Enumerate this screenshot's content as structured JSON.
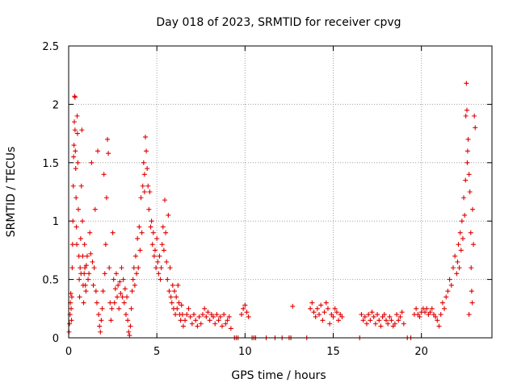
{
  "chart_data": {
    "type": "scatter",
    "title": "Day 018 of 2023, SRMTID for receiver cpvg",
    "xlabel": "GPS time / hours",
    "ylabel": "SRMTID / TECUs",
    "xlim": [
      0,
      24
    ],
    "ylim": [
      0,
      2.5
    ],
    "x_ticks": [
      0,
      5,
      10,
      15,
      20
    ],
    "y_ticks": [
      0,
      0.5,
      1,
      1.5,
      2,
      2.5
    ],
    "x_tick_labels": [
      "0",
      "5",
      "10",
      "15",
      "20"
    ],
    "y_tick_labels": [
      "0",
      "0.5",
      "1",
      "1.5",
      "2",
      "2.5"
    ],
    "grid": true,
    "marker": "+",
    "color": "#e00000",
    "series": [
      {
        "name": "cpvg",
        "points": [
          [
            0.02,
            0.05
          ],
          [
            0.05,
            0.12
          ],
          [
            0.08,
            0.2
          ],
          [
            0.1,
            0.3
          ],
          [
            0.12,
            0.38
          ],
          [
            0.14,
            0.25
          ],
          [
            0.16,
            0.15
          ],
          [
            0.18,
            0.35
          ],
          [
            0.2,
            0.6
          ],
          [
            0.22,
            0.8
          ],
          [
            0.24,
            1.0
          ],
          [
            0.26,
            1.3
          ],
          [
            0.28,
            1.55
          ],
          [
            0.3,
            1.65
          ],
          [
            0.32,
            1.85
          ],
          [
            0.34,
            2.07
          ],
          [
            0.36,
            1.78
          ],
          [
            0.38,
            1.6
          ],
          [
            0.4,
            1.45
          ],
          [
            0.42,
            1.2
          ],
          [
            0.44,
            0.95
          ],
          [
            0.46,
            0.8
          ],
          [
            0.48,
            1.9
          ],
          [
            0.5,
            1.75
          ],
          [
            0.52,
            1.5
          ],
          [
            0.55,
            1.1
          ],
          [
            0.58,
            0.7
          ],
          [
            0.6,
            0.5
          ],
          [
            0.62,
            0.35
          ],
          [
            0.65,
            0.6
          ],
          [
            0.68,
            0.85
          ],
          [
            0.7,
            0.55
          ],
          [
            0.72,
            1.3
          ],
          [
            0.75,
            1.78
          ],
          [
            0.78,
            1.0
          ],
          [
            0.8,
            0.7
          ],
          [
            0.82,
            0.45
          ],
          [
            0.85,
            0.3
          ],
          [
            0.88,
            0.55
          ],
          [
            0.9,
            0.8
          ],
          [
            0.92,
            0.6
          ],
          [
            0.95,
            0.45
          ],
          [
            0.98,
            0.4
          ],
          [
            1.0,
            0.62
          ],
          [
            1.05,
            0.7
          ],
          [
            1.1,
            0.5
          ],
          [
            1.15,
            0.55
          ],
          [
            1.2,
            0.9
          ],
          [
            1.25,
            0.72
          ],
          [
            1.3,
            1.5
          ],
          [
            1.35,
            0.65
          ],
          [
            1.4,
            0.45
          ],
          [
            1.45,
            0.6
          ],
          [
            1.5,
            1.1
          ],
          [
            1.55,
            0.4
          ],
          [
            1.6,
            0.3
          ],
          [
            1.65,
            1.6
          ],
          [
            1.7,
            0.2
          ],
          [
            1.75,
            0.1
          ],
          [
            1.8,
            0.05
          ],
          [
            1.85,
            0.15
          ],
          [
            1.9,
            0.25
          ],
          [
            1.95,
            0.4
          ],
          [
            2.0,
            1.4
          ],
          [
            2.05,
            0.55
          ],
          [
            2.1,
            0.8
          ],
          [
            2.15,
            1.2
          ],
          [
            2.2,
            1.7
          ],
          [
            2.25,
            1.58
          ],
          [
            2.3,
            0.6
          ],
          [
            2.35,
            0.3
          ],
          [
            2.4,
            0.15
          ],
          [
            2.45,
            0.25
          ],
          [
            2.5,
            0.9
          ],
          [
            2.55,
            0.5
          ],
          [
            2.6,
            0.3
          ],
          [
            2.65,
            0.42
          ],
          [
            2.7,
            0.55
          ],
          [
            2.75,
            0.35
          ],
          [
            2.8,
            0.45
          ],
          [
            2.85,
            0.25
          ],
          [
            2.9,
            0.48
          ],
          [
            2.95,
            0.38
          ],
          [
            3.0,
            0.6
          ],
          [
            3.05,
            0.35
          ],
          [
            3.1,
            0.5
          ],
          [
            3.15,
            0.3
          ],
          [
            3.2,
            0.42
          ],
          [
            3.25,
            0.2
          ],
          [
            3.3,
            0.35
          ],
          [
            3.35,
            0.15
          ],
          [
            3.4,
            0.05
          ],
          [
            3.45,
            0.02
          ],
          [
            3.5,
            0.1
          ],
          [
            3.55,
            0.25
          ],
          [
            3.6,
            0.4
          ],
          [
            3.65,
            0.5
          ],
          [
            3.7,
            0.6
          ],
          [
            3.75,
            0.45
          ],
          [
            3.8,
            0.7
          ],
          [
            3.85,
            0.55
          ],
          [
            3.9,
            0.85
          ],
          [
            3.95,
            0.6
          ],
          [
            4.0,
            0.95
          ],
          [
            4.05,
            0.75
          ],
          [
            4.1,
            1.2
          ],
          [
            4.15,
            0.9
          ],
          [
            4.2,
            1.3
          ],
          [
            4.25,
            1.5
          ],
          [
            4.3,
            1.4
          ],
          [
            4.35,
            1.72
          ],
          [
            4.4,
            1.6
          ],
          [
            4.45,
            1.45
          ],
          [
            4.5,
            1.3
          ],
          [
            4.55,
            1.1
          ],
          [
            4.6,
            1.25
          ],
          [
            4.65,
            0.95
          ],
          [
            4.7,
            1.0
          ],
          [
            4.75,
            0.8
          ],
          [
            4.8,
            0.9
          ],
          [
            4.85,
            0.7
          ],
          [
            4.9,
            0.75
          ],
          [
            4.95,
            0.6
          ],
          [
            5.0,
            0.85
          ],
          [
            5.05,
            0.65
          ],
          [
            5.1,
            0.55
          ],
          [
            5.15,
            0.7
          ],
          [
            5.2,
            0.5
          ],
          [
            5.25,
            0.6
          ],
          [
            5.3,
            0.8
          ],
          [
            5.35,
            0.95
          ],
          [
            5.4,
            0.75
          ],
          [
            5.45,
            1.18
          ],
          [
            5.5,
            0.9
          ],
          [
            5.55,
            0.65
          ],
          [
            5.6,
            0.5
          ],
          [
            5.65,
            1.05
          ],
          [
            5.7,
            0.4
          ],
          [
            5.75,
            0.6
          ],
          [
            5.8,
            0.35
          ],
          [
            5.85,
            0.3
          ],
          [
            5.9,
            0.45
          ],
          [
            5.95,
            0.25
          ],
          [
            6.0,
            0.4
          ],
          [
            6.05,
            0.2
          ],
          [
            6.1,
            0.35
          ],
          [
            6.15,
            0.25
          ],
          [
            6.2,
            0.45
          ],
          [
            6.25,
            0.3
          ],
          [
            6.3,
            0.2
          ],
          [
            6.35,
            0.15
          ],
          [
            6.4,
            0.28
          ],
          [
            6.45,
            0.2
          ],
          [
            6.5,
            0.1
          ],
          [
            6.6,
            0.15
          ],
          [
            6.7,
            0.2
          ],
          [
            6.8,
            0.25
          ],
          [
            6.9,
            0.18
          ],
          [
            7.0,
            0.12
          ],
          [
            7.1,
            0.2
          ],
          [
            7.2,
            0.15
          ],
          [
            7.3,
            0.1
          ],
          [
            7.4,
            0.18
          ],
          [
            7.5,
            0.12
          ],
          [
            7.6,
            0.2
          ],
          [
            7.7,
            0.25
          ],
          [
            7.8,
            0.18
          ],
          [
            7.9,
            0.22
          ],
          [
            8.0,
            0.15
          ],
          [
            8.1,
            0.2
          ],
          [
            8.2,
            0.18
          ],
          [
            8.3,
            0.12
          ],
          [
            8.4,
            0.2
          ],
          [
            8.5,
            0.15
          ],
          [
            8.6,
            0.18
          ],
          [
            8.7,
            0.1
          ],
          [
            8.8,
            0.2
          ],
          [
            8.9,
            0.12
          ],
          [
            9.0,
            0.15
          ],
          [
            9.1,
            0.18
          ],
          [
            9.2,
            0.08
          ],
          [
            9.4,
            0.0
          ],
          [
            9.5,
            0.0
          ],
          [
            9.6,
            0.0
          ],
          [
            9.8,
            0.2
          ],
          [
            9.9,
            0.25
          ],
          [
            10.0,
            0.28
          ],
          [
            10.1,
            0.22
          ],
          [
            10.2,
            0.18
          ],
          [
            10.4,
            0.0
          ],
          [
            10.5,
            0.0
          ],
          [
            10.6,
            0.0
          ],
          [
            11.2,
            0.0
          ],
          [
            11.7,
            0.0
          ],
          [
            12.1,
            0.0
          ],
          [
            12.5,
            0.0
          ],
          [
            12.6,
            0.0
          ],
          [
            12.7,
            0.27
          ],
          [
            13.5,
            0.0
          ],
          [
            13.7,
            0.25
          ],
          [
            13.8,
            0.3
          ],
          [
            13.9,
            0.22
          ],
          [
            14.0,
            0.18
          ],
          [
            14.1,
            0.25
          ],
          [
            14.2,
            0.2
          ],
          [
            14.3,
            0.28
          ],
          [
            14.4,
            0.15
          ],
          [
            14.5,
            0.22
          ],
          [
            14.6,
            0.3
          ],
          [
            14.7,
            0.25
          ],
          [
            14.8,
            0.12
          ],
          [
            14.9,
            0.2
          ],
          [
            15.0,
            0.18
          ],
          [
            15.1,
            0.25
          ],
          [
            15.2,
            0.22
          ],
          [
            15.3,
            0.15
          ],
          [
            15.4,
            0.2
          ],
          [
            15.5,
            0.18
          ],
          [
            16.5,
            0.0
          ],
          [
            16.6,
            0.2
          ],
          [
            16.7,
            0.15
          ],
          [
            16.8,
            0.18
          ],
          [
            16.9,
            0.12
          ],
          [
            17.0,
            0.2
          ],
          [
            17.1,
            0.15
          ],
          [
            17.2,
            0.22
          ],
          [
            17.3,
            0.18
          ],
          [
            17.4,
            0.12
          ],
          [
            17.5,
            0.2
          ],
          [
            17.6,
            0.15
          ],
          [
            17.7,
            0.1
          ],
          [
            17.8,
            0.18
          ],
          [
            17.9,
            0.2
          ],
          [
            18.0,
            0.15
          ],
          [
            18.1,
            0.12
          ],
          [
            18.2,
            0.18
          ],
          [
            18.3,
            0.15
          ],
          [
            18.4,
            0.1
          ],
          [
            18.5,
            0.12
          ],
          [
            18.6,
            0.2
          ],
          [
            18.7,
            0.15
          ],
          [
            18.8,
            0.18
          ],
          [
            18.9,
            0.22
          ],
          [
            19.0,
            0.12
          ],
          [
            19.2,
            0.0
          ],
          [
            19.4,
            0.0
          ],
          [
            19.6,
            0.2
          ],
          [
            19.7,
            0.25
          ],
          [
            19.8,
            0.2
          ],
          [
            19.9,
            0.18
          ],
          [
            20.0,
            0.22
          ],
          [
            20.1,
            0.25
          ],
          [
            20.2,
            0.22
          ],
          [
            20.3,
            0.25
          ],
          [
            20.4,
            0.2
          ],
          [
            20.5,
            0.22
          ],
          [
            20.6,
            0.25
          ],
          [
            20.7,
            0.2
          ],
          [
            20.8,
            0.18
          ],
          [
            20.9,
            0.15
          ],
          [
            21.0,
            0.1
          ],
          [
            21.1,
            0.2
          ],
          [
            21.2,
            0.3
          ],
          [
            21.3,
            0.25
          ],
          [
            21.4,
            0.35
          ],
          [
            21.5,
            0.4
          ],
          [
            21.6,
            0.5
          ],
          [
            21.7,
            0.45
          ],
          [
            21.8,
            0.6
          ],
          [
            21.9,
            0.7
          ],
          [
            22.0,
            0.55
          ],
          [
            22.05,
            0.65
          ],
          [
            22.1,
            0.8
          ],
          [
            22.15,
            0.6
          ],
          [
            22.2,
            0.9
          ],
          [
            22.25,
            0.75
          ],
          [
            22.3,
            1.0
          ],
          [
            22.35,
            0.85
          ],
          [
            22.4,
            1.2
          ],
          [
            22.45,
            1.05
          ],
          [
            22.5,
            1.35
          ],
          [
            22.52,
            1.9
          ],
          [
            22.55,
            2.18
          ],
          [
            22.6,
            1.5
          ],
          [
            22.65,
            1.7
          ],
          [
            22.7,
            1.4
          ],
          [
            22.75,
            1.25
          ],
          [
            22.8,
            0.9
          ],
          [
            22.82,
            0.6
          ],
          [
            22.85,
            0.4
          ],
          [
            22.88,
            0.3
          ],
          [
            22.9,
            1.1
          ],
          [
            22.95,
            0.8
          ],
          [
            23.0,
            1.9
          ],
          [
            23.05,
            1.8
          ],
          [
            22.58,
            1.95
          ],
          [
            22.62,
            1.6
          ],
          [
            22.7,
            0.2
          ],
          [
            0.36,
            2.06
          ],
          [
            4.3,
            1.25
          ]
        ]
      }
    ]
  }
}
